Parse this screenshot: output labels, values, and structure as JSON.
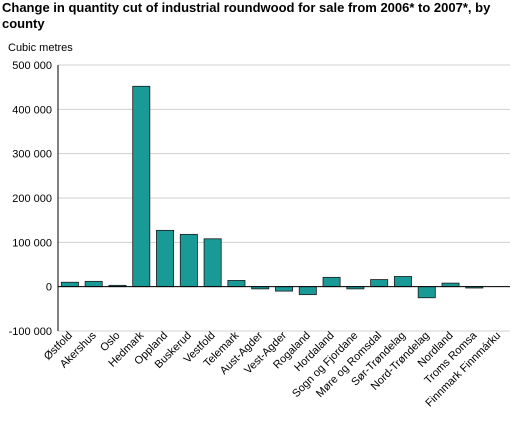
{
  "chart_data": {
    "type": "bar",
    "title": "Change in quantity cut of industrial roundwood for sale from 2006* to 2007*, by county",
    "ylabel": "Cubic metres",
    "xlabel": "",
    "ylim": [
      -100000,
      500000
    ],
    "yticks": [
      -100000,
      0,
      100000,
      200000,
      300000,
      400000,
      500000
    ],
    "ytick_labels": [
      "-100 000",
      "0",
      "100 000",
      "200 000",
      "300 000",
      "400 000",
      "500 000"
    ],
    "grid": true,
    "bar_color": "#1a9a96",
    "categories": [
      "Østfold",
      "Akershus",
      "Oslo",
      "Hedmark",
      "Oppland",
      "Buskerud",
      "Vestfold",
      "Telemark",
      "Aust-Agder",
      "Vest-Agder",
      "Rogaland",
      "Hordaland",
      "Sogn og Fjordane",
      "Møre og Romsdal",
      "Sør-Trøndelag",
      "Nord-Trøndelag",
      "Nordland",
      "Troms Romsa",
      "Finnmark Finnmárku"
    ],
    "values": [
      10000,
      12000,
      3000,
      452000,
      127000,
      118000,
      108000,
      14000,
      -5000,
      -10000,
      -18000,
      21000,
      -5000,
      16000,
      23000,
      -25000,
      8000,
      -3000,
      0
    ]
  }
}
